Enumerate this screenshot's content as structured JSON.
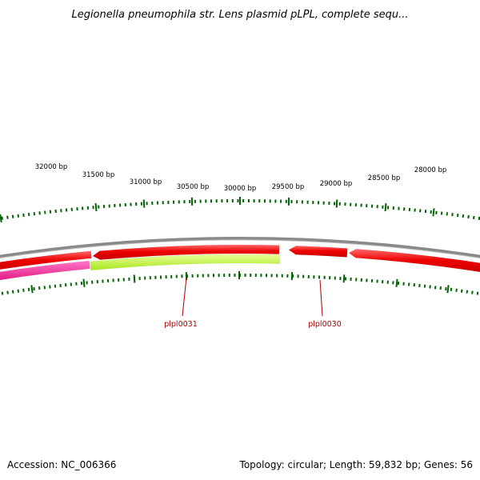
{
  "title": "Legionella pneumophila str. Lens plasmid pLPL, complete sequ...",
  "accession": "Accession: NC_006366",
  "summary": "Topology: circular; Length: 59,832 bp; Genes: 56",
  "colors": {
    "backbone": "#8a8a8a",
    "forward_gene": "#ee0000",
    "reverse_gene_a": "#ff1493",
    "reverse_gene_b": "#aaee22",
    "tick": "#006400",
    "gene_label": "#aa0000"
  },
  "scale_labels": [
    "32000 bp",
    "31500 bp",
    "31000 bp",
    "30500 bp",
    "30000 bp",
    "29500 bp",
    "29000 bp",
    "28500 bp",
    "28000 bp"
  ],
  "gene_labels": [
    "plpl0031",
    "plpl0030"
  ]
}
